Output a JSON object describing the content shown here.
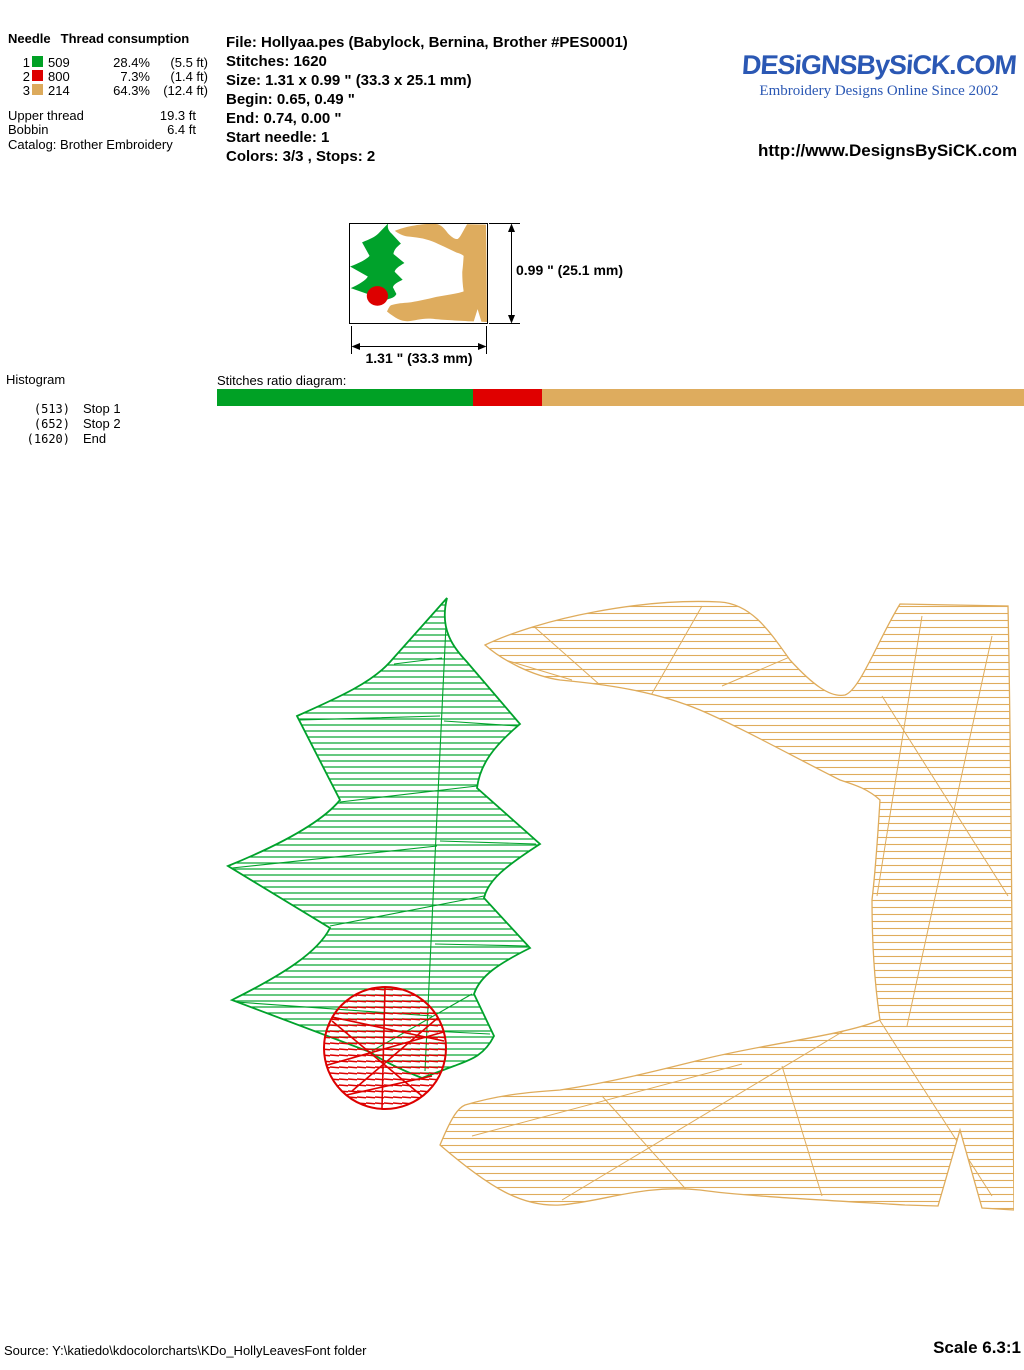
{
  "needle_table": {
    "col_needle": "Needle",
    "col_thread": "Thread consumption",
    "rows": [
      {
        "needle": "1",
        "color": "#00A125",
        "thread": "509",
        "percent": "28.4%",
        "length": "(5.5 ft)"
      },
      {
        "needle": "2",
        "color": "#DD0000",
        "thread": "800",
        "percent": "7.3%",
        "length": "(1.4 ft)"
      },
      {
        "needle": "3",
        "color": "#DCAA5C",
        "thread": "214",
        "percent": "64.3%",
        "length": "(12.4 ft)"
      }
    ],
    "upper_thread_label": "Upper thread",
    "upper_thread_value": "19.3 ft",
    "bobbin_label": "Bobbin",
    "bobbin_value": "6.4 ft",
    "catalog": "Catalog: Brother Embroidery"
  },
  "file_info": {
    "file": "File: Hollyaa.pes  (Babylock, Bernina, Brother #PES0001)",
    "stitches": "Stitches: 1620",
    "size": "Size: 1.31 x 0.99 \" (33.3 x 25.1 mm)",
    "begin": "Begin: 0.65, 0.49 \"",
    "end": "End: 0.74, 0.00 \"",
    "start_needle": "Start needle: 1",
    "colors": "Colors: 3/3 , Stops: 2"
  },
  "logo": {
    "title": "DESiGNSBySiCK.COM",
    "tagline": "Embroidery Designs Online Since 2002",
    "url": "http://www.DesignsBySiCK.com",
    "color": "#2B58B4"
  },
  "preview": {
    "height_label": "0.99 \" (25.1 mm)",
    "width_label": "1.31 \" (33.3 mm)"
  },
  "histogram": {
    "title": "Histogram",
    "rows": [
      {
        "count": "(513)",
        "label": "Stop 1"
      },
      {
        "count": "(652)",
        "label": "Stop 2"
      },
      {
        "count": "(1620)",
        "label": "End"
      }
    ]
  },
  "ratio": {
    "label": "Stitches ratio diagram:",
    "segments": [
      {
        "color": "#00A125",
        "pct": 31.7
      },
      {
        "color": "#E00000",
        "pct": 8.6
      },
      {
        "color": "#DEAC5E",
        "pct": 59.7
      }
    ]
  },
  "design": {
    "colors": {
      "green": "#00A22B",
      "red": "#DD0000",
      "tan": "#DEAC5E",
      "tan_line": "#DFAC5C"
    }
  },
  "footer": {
    "source": "Source: Y:\\katiedo\\kdocolorcharts\\KDo_HollyLeavesFont folder",
    "scale": "Scale 6.3:1"
  }
}
